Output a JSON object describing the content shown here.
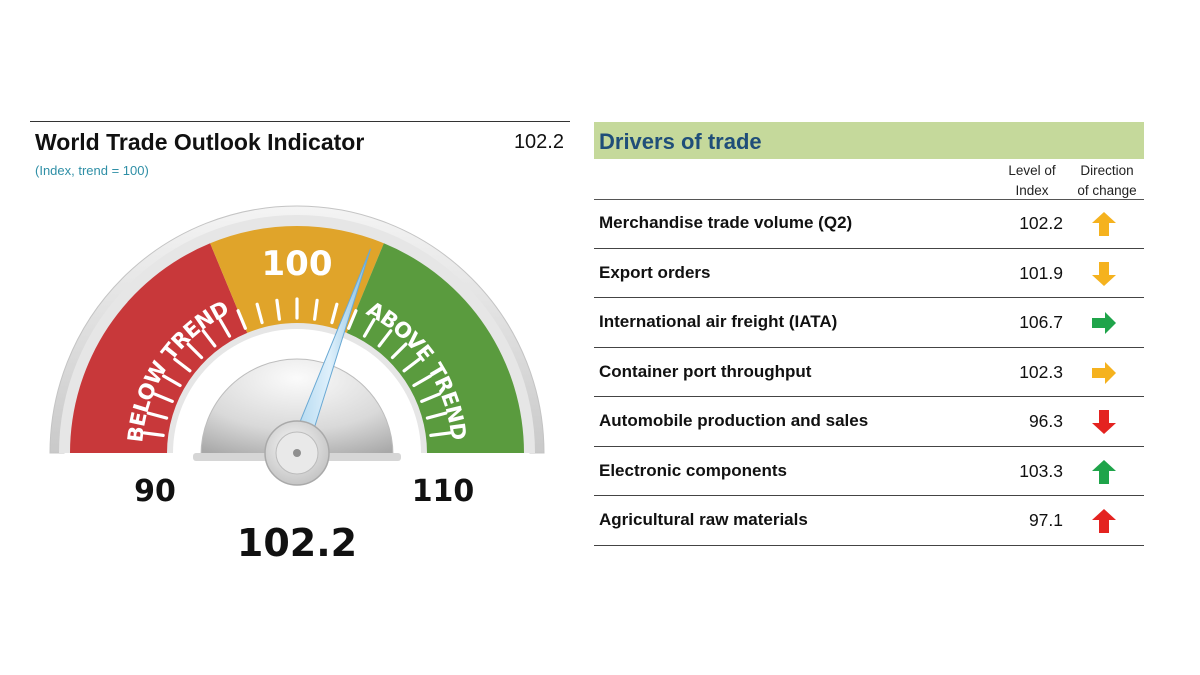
{
  "gauge": {
    "title": "World Trade Outlook Indicator",
    "header_value": "102.2",
    "subtitle": "(Index, trend = 100)"
  },
  "chart_data": [
    {
      "type": "gauge",
      "title": "World Trade Outlook Indicator",
      "subtitle": "(Index, trend = 100)",
      "value": 102.2,
      "value_label": "102.2",
      "range": [
        90,
        110
      ],
      "min_label": "90",
      "max_label": "110",
      "center_label": "100",
      "bands": [
        {
          "label": "BELOW TREND",
          "from": 90,
          "to": 97.5,
          "color": "#c8383a"
        },
        {
          "label": "",
          "from": 97.5,
          "to": 102.5,
          "color": "#e0a42a"
        },
        {
          "label": "ABOVE TREND",
          "from": 102.5,
          "to": 110,
          "color": "#5a9b3e"
        }
      ]
    },
    {
      "type": "table",
      "title": "Drivers of trade",
      "columns": [
        "Level of Index",
        "Direction of change"
      ],
      "rows": [
        {
          "label": "Merchandise trade volume (Q2)",
          "value": "102.2",
          "direction": "up",
          "color": "#f5b21e"
        },
        {
          "label": "Export orders",
          "value": "101.9",
          "direction": "down",
          "color": "#f5b21e"
        },
        {
          "label": "International air freight (IATA)",
          "value": "106.7",
          "direction": "right",
          "color": "#1fa44a"
        },
        {
          "label": "Container port throughput",
          "value": "102.3",
          "direction": "right",
          "color": "#f5b21e"
        },
        {
          "label": "Automobile production and sales",
          "value": "96.3",
          "direction": "down",
          "color": "#e42320"
        },
        {
          "label": "Electronic components",
          "value": "103.3",
          "direction": "up",
          "color": "#1fa44a"
        },
        {
          "label": "Agricultural raw materials",
          "value": "97.1",
          "direction": "up",
          "color": "#e42320"
        }
      ]
    }
  ],
  "drivers": {
    "title": "Drivers of trade",
    "col_level_1": "Level of",
    "col_level_2": "Index",
    "col_dir_1": "Direction",
    "col_dir_2": "of change"
  }
}
